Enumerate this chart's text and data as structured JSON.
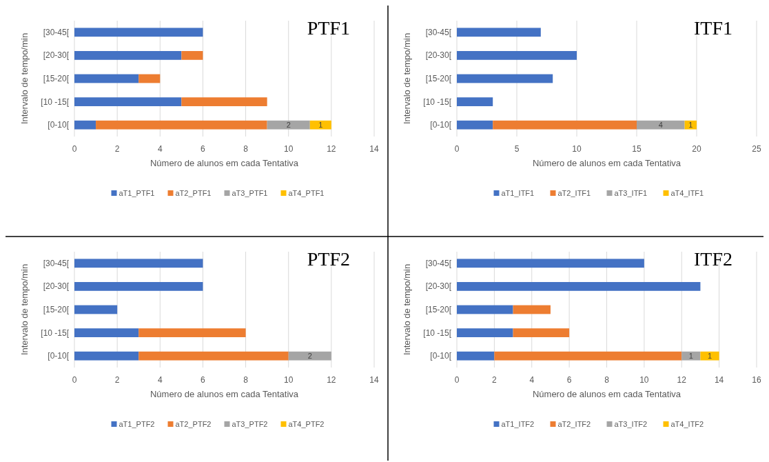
{
  "chart_data": [
    {
      "type": "bar",
      "orientation": "horizontal",
      "stacked": true,
      "title": "PTF1",
      "xlabel": "Número de alunos em cada Tentativa",
      "ylabel": "Intervalo de tempo/min",
      "categories": [
        "[30-45[",
        "[20-30[",
        "[15-20[",
        "[10 -15[",
        "[0-10["
      ],
      "xlim": [
        0,
        14
      ],
      "xticks": [
        0,
        2,
        4,
        6,
        8,
        10,
        12,
        14
      ],
      "grid": "x",
      "legend": "bottom",
      "series": [
        {
          "name": "aT1_PTF1",
          "color": "#4472c4",
          "values": [
            6,
            5,
            3,
            5,
            1
          ]
        },
        {
          "name": "aT2_PTF1",
          "color": "#ed7d31",
          "values": [
            0,
            1,
            1,
            4,
            8
          ]
        },
        {
          "name": "aT3_PTF1",
          "color": "#a5a5a5",
          "values": [
            0,
            0,
            0,
            0,
            2
          ],
          "value_labels": [
            null,
            null,
            null,
            null,
            "2"
          ]
        },
        {
          "name": "aT4_PTF1",
          "color": "#ffc000",
          "values": [
            0,
            0,
            0,
            0,
            1
          ],
          "value_labels": [
            null,
            null,
            null,
            null,
            "1"
          ]
        }
      ]
    },
    {
      "type": "bar",
      "orientation": "horizontal",
      "stacked": true,
      "title": "ITF1",
      "xlabel": "Número de alunos em cada Tentativa",
      "ylabel": "Intervalo de tempo/min",
      "categories": [
        "[30-45[",
        "[20-30[",
        "[15-20[",
        "[10 -15[",
        "[0-10["
      ],
      "xlim": [
        0,
        25
      ],
      "xticks": [
        0,
        5,
        10,
        15,
        20,
        25
      ],
      "grid": "x",
      "legend": "bottom",
      "series": [
        {
          "name": "aT1_ITF1",
          "color": "#4472c4",
          "values": [
            7,
            10,
            8,
            3,
            3
          ]
        },
        {
          "name": "aT2_ITF1",
          "color": "#ed7d31",
          "values": [
            0,
            0,
            0,
            0,
            12
          ]
        },
        {
          "name": "aT3_ITF1",
          "color": "#a5a5a5",
          "values": [
            0,
            0,
            0,
            0,
            4
          ],
          "value_labels": [
            null,
            null,
            null,
            null,
            "4"
          ]
        },
        {
          "name": "aT4_ITF1",
          "color": "#ffc000",
          "values": [
            0,
            0,
            0,
            0,
            1
          ],
          "value_labels": [
            null,
            null,
            null,
            null,
            "1"
          ]
        }
      ]
    },
    {
      "type": "bar",
      "orientation": "horizontal",
      "stacked": true,
      "title": "PTF2",
      "xlabel": "Número de alunos em cada Tentativa",
      "ylabel": "Intervalo de tempo/min",
      "categories": [
        "[30-45[",
        "[20-30[",
        "[15-20[",
        "[10 -15[",
        "[0-10["
      ],
      "xlim": [
        0,
        14
      ],
      "xticks": [
        0,
        2,
        4,
        6,
        8,
        10,
        12,
        14
      ],
      "grid": "x",
      "legend": "bottom",
      "series": [
        {
          "name": "aT1_PTF2",
          "color": "#4472c4",
          "values": [
            6,
            6,
            2,
            3,
            3
          ]
        },
        {
          "name": "aT2_PTF2",
          "color": "#ed7d31",
          "values": [
            0,
            0,
            0,
            5,
            7
          ]
        },
        {
          "name": "aT3_PTF2",
          "color": "#a5a5a5",
          "values": [
            0,
            0,
            0,
            0,
            2
          ],
          "value_labels": [
            null,
            null,
            null,
            null,
            "2"
          ]
        },
        {
          "name": "aT4_PTF2",
          "color": "#ffc000",
          "values": [
            0,
            0,
            0,
            0,
            0
          ]
        }
      ]
    },
    {
      "type": "bar",
      "orientation": "horizontal",
      "stacked": true,
      "title": "ITF2",
      "xlabel": "Número de alunos em cada Tentativa",
      "ylabel": "Intervalo de tempo/min",
      "categories": [
        "[30-45[",
        "[20-30[",
        "[15-20[",
        "[10 -15[",
        "[0-10["
      ],
      "xlim": [
        0,
        16
      ],
      "xticks": [
        0,
        2,
        4,
        6,
        8,
        10,
        12,
        14,
        16
      ],
      "grid": "x",
      "legend": "bottom",
      "series": [
        {
          "name": "aT1_ITF2",
          "color": "#4472c4",
          "values": [
            10,
            13,
            3,
            3,
            2
          ]
        },
        {
          "name": "aT2_ITF2",
          "color": "#ed7d31",
          "values": [
            0,
            0,
            2,
            3,
            10
          ]
        },
        {
          "name": "aT3_ITF2",
          "color": "#a5a5a5",
          "values": [
            0,
            0,
            0,
            0,
            1
          ],
          "value_labels": [
            null,
            null,
            null,
            null,
            "1"
          ]
        },
        {
          "name": "aT4_ITF2",
          "color": "#ffc000",
          "values": [
            0,
            0,
            0,
            0,
            1
          ],
          "value_labels": [
            null,
            null,
            null,
            null,
            "1"
          ]
        }
      ]
    }
  ]
}
